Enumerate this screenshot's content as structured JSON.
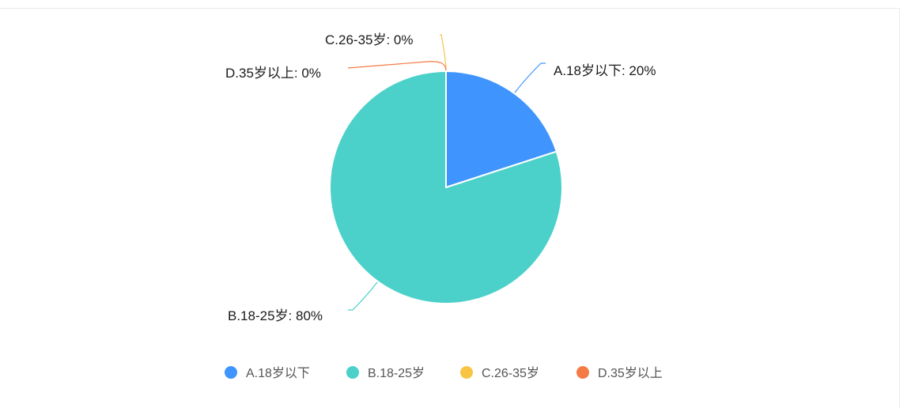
{
  "chart_data": {
    "type": "pie",
    "categories": [
      "A.18岁以下",
      "B.18-25岁",
      "C.26-35岁",
      "D.35岁以上"
    ],
    "values": [
      20,
      80,
      0,
      0
    ],
    "labels": [
      "A.18岁以下: 20%",
      "B.18-25岁: 80%",
      "C.26-35岁: 0%",
      "D.35岁以上: 0%"
    ],
    "colors": [
      "#3f95fd",
      "#4bd1ca",
      "#f8c444",
      "#f47b45"
    ],
    "legend": {
      "position": "bottom",
      "items": [
        "A.18岁以下",
        "B.18-25岁",
        "C.26-35岁",
        "D.35岁以上"
      ]
    },
    "unit": "%"
  }
}
